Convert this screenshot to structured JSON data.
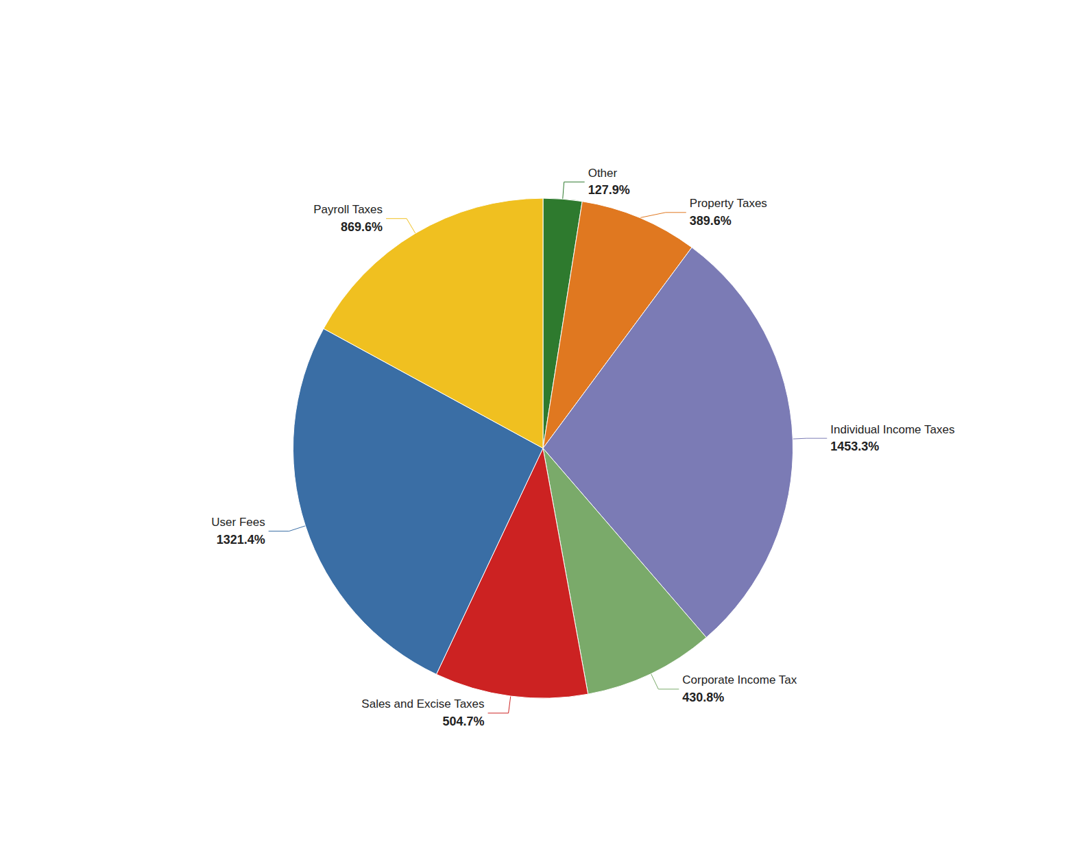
{
  "chart_data": {
    "type": "pie",
    "categories": [
      "Other",
      "Property Taxes",
      "Individual Income Taxes",
      "Corporate Income Tax",
      "Sales and Excise Taxes",
      "User Fees",
      "Payroll Taxes"
    ],
    "values": [
      127.9,
      389.6,
      1453.3,
      430.8,
      504.7,
      1321.4,
      869.6
    ],
    "value_labels": [
      "127.9%",
      "389.6%",
      "1453.3%",
      "430.8%",
      "504.7%",
      "1321.4%",
      "869.6%"
    ],
    "colors": [
      "#2e7a2e",
      "#e07820",
      "#7b7bb5",
      "#7aaa6a",
      "#cc2222",
      "#3a6ea5",
      "#f0c020"
    ],
    "data_labels": true
  }
}
